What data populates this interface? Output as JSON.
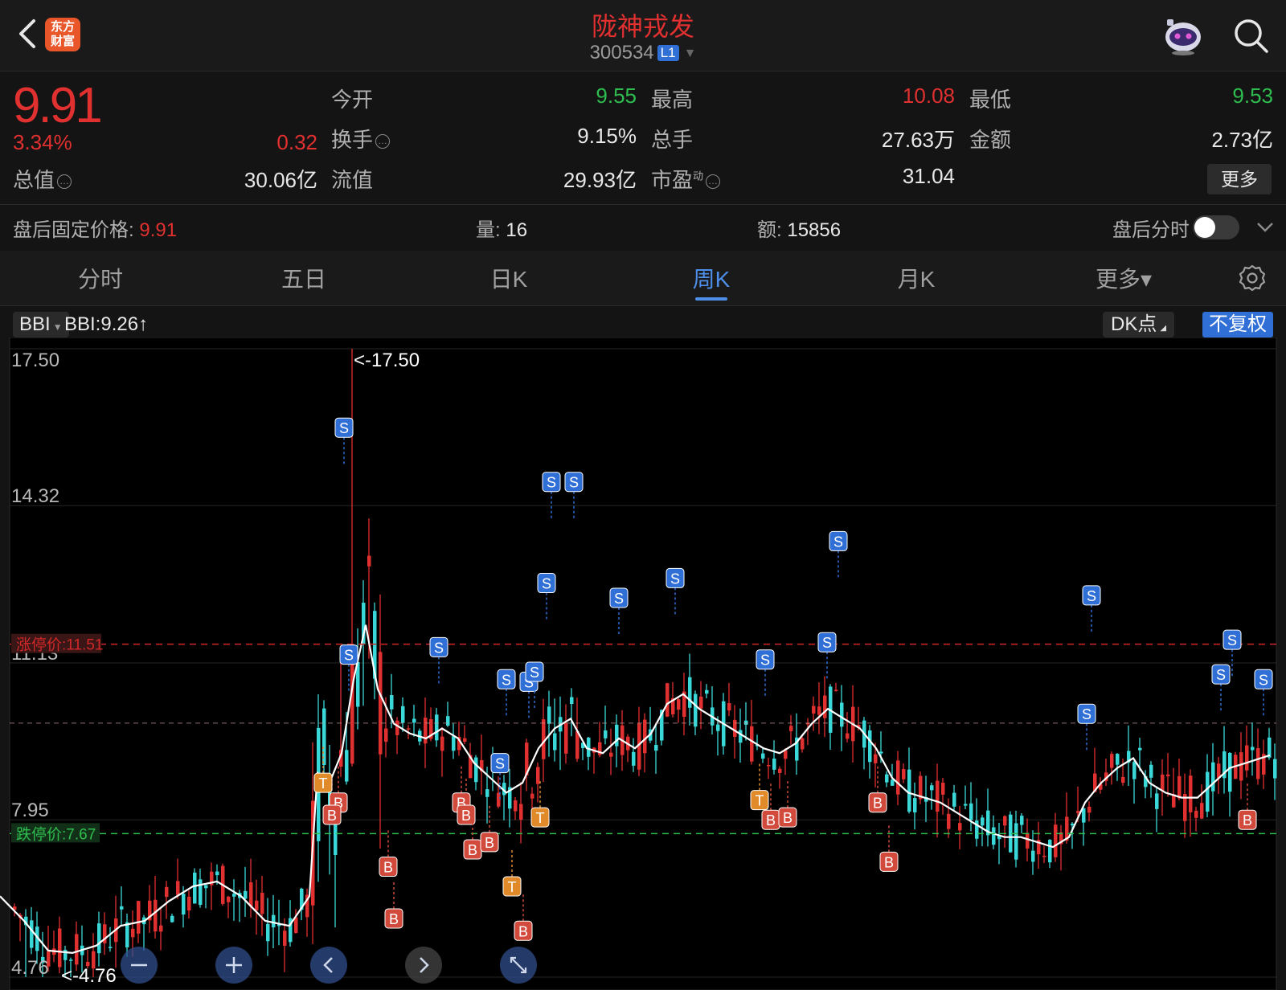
{
  "header": {
    "title": "陇神戎发",
    "code": "300534",
    "level_badge": "L1",
    "logo_line1": "东方",
    "logo_line2": "财富",
    "icons": [
      "back-arrow-icon",
      "robot-assistant-icon",
      "search-icon"
    ]
  },
  "quote": {
    "price": "9.91",
    "change_pct": "3.34%",
    "change": "0.32",
    "open_label": "今开",
    "open": "9.55",
    "high_label": "最高",
    "high": "10.08",
    "low_label": "最低",
    "low": "9.53",
    "turnover_label": "换手",
    "turnover": "9.15%",
    "volume_label": "总手",
    "volume": "27.63万",
    "amount_label": "金额",
    "amount": "2.73亿",
    "mktcap_label": "总值",
    "mktcap": "30.06亿",
    "float_label": "流值",
    "float_cap": "29.93亿",
    "pe_label": "市盈",
    "pe_sup": "动",
    "pe": "31.04",
    "more_label": "更多"
  },
  "after_hours": {
    "price_label": "盘后固定价格:",
    "price": "9.91",
    "vol_label": "量:",
    "vol": "16",
    "amt_label": "额:",
    "amt": "15856",
    "toggle_label": "盘后分时"
  },
  "tabs": [
    {
      "label": "分时"
    },
    {
      "label": "五日"
    },
    {
      "label": "日K"
    },
    {
      "label": "周K",
      "active": true
    },
    {
      "label": "月K"
    },
    {
      "label": "更多▾"
    }
  ],
  "chart_toolbar": {
    "indicator": "BBI",
    "indicator_value": "BBI:9.26↑",
    "dk_label": "DK点",
    "adjust_label": "不复权"
  },
  "chart_data": {
    "type": "candlestick",
    "y_ticks": [
      "17.50",
      "14.32",
      "11.13",
      "7.95",
      "4.76"
    ],
    "ylim": [
      4.76,
      17.5
    ],
    "limit_up_label": "涨停价:11.51",
    "limit_up": 11.51,
    "limit_down_label": "跌停价:7.67",
    "limit_down": 7.67,
    "ref_price": 9.91,
    "max_label": "<-17.50",
    "min_label": "<-4.76",
    "colors": {
      "up": "#e0302f",
      "down": "#3ad8d8",
      "bbi": "#ffffff",
      "limit_up": "#d02828",
      "limit_down": "#2ebd4e"
    },
    "bbi": [
      [
        0,
        6.4
      ],
      [
        30,
        5.9
      ],
      [
        60,
        5.3
      ],
      [
        90,
        5.25
      ],
      [
        120,
        5.4
      ],
      [
        150,
        5.8
      ],
      [
        180,
        5.9
      ],
      [
        210,
        6.3
      ],
      [
        240,
        6.6
      ],
      [
        270,
        6.7
      ],
      [
        300,
        6.4
      ],
      [
        330,
        5.9
      ],
      [
        360,
        5.8
      ],
      [
        385,
        6.4
      ],
      [
        395,
        8.9
      ],
      [
        410,
        8.7
      ],
      [
        425,
        9.3
      ],
      [
        440,
        10.8
      ],
      [
        455,
        11.9
      ],
      [
        470,
        10.6
      ],
      [
        490,
        9.9
      ],
      [
        510,
        9.7
      ],
      [
        530,
        9.6
      ],
      [
        550,
        9.8
      ],
      [
        570,
        9.6
      ],
      [
        590,
        9.1
      ],
      [
        610,
        8.8
      ],
      [
        630,
        8.5
      ],
      [
        650,
        8.7
      ],
      [
        670,
        9.4
      ],
      [
        690,
        9.8
      ],
      [
        710,
        10.0
      ],
      [
        730,
        9.4
      ],
      [
        750,
        9.3
      ],
      [
        770,
        9.6
      ],
      [
        790,
        9.4
      ],
      [
        810,
        9.7
      ],
      [
        830,
        10.3
      ],
      [
        850,
        10.5
      ],
      [
        870,
        10.2
      ],
      [
        890,
        10.0
      ],
      [
        910,
        9.8
      ],
      [
        930,
        9.6
      ],
      [
        950,
        9.4
      ],
      [
        970,
        9.3
      ],
      [
        990,
        9.5
      ],
      [
        1010,
        9.9
      ],
      [
        1030,
        10.2
      ],
      [
        1050,
        10.0
      ],
      [
        1070,
        9.8
      ],
      [
        1090,
        9.4
      ],
      [
        1110,
        8.8
      ],
      [
        1130,
        8.5
      ],
      [
        1150,
        8.4
      ],
      [
        1170,
        8.3
      ],
      [
        1190,
        8.1
      ],
      [
        1210,
        7.9
      ],
      [
        1230,
        7.7
      ],
      [
        1250,
        7.6
      ],
      [
        1270,
        7.6
      ],
      [
        1290,
        7.5
      ],
      [
        1310,
        7.4
      ],
      [
        1330,
        7.6
      ],
      [
        1350,
        8.3
      ],
      [
        1370,
        8.7
      ],
      [
        1390,
        9.0
      ],
      [
        1410,
        9.2
      ],
      [
        1430,
        8.7
      ],
      [
        1450,
        8.5
      ],
      [
        1470,
        8.4
      ],
      [
        1490,
        8.4
      ],
      [
        1510,
        8.7
      ],
      [
        1530,
        9.0
      ],
      [
        1550,
        9.1
      ],
      [
        1580,
        9.26
      ]
    ],
    "markers": [
      {
        "t": "S",
        "x": 428,
        "y": 15.9
      },
      {
        "t": "S",
        "x": 434,
        "y": 11.3
      },
      {
        "t": "S",
        "x": 546,
        "y": 11.45
      },
      {
        "t": "S",
        "x": 630,
        "y": 10.8
      },
      {
        "t": "S",
        "x": 622,
        "y": 9.1
      },
      {
        "t": "S",
        "x": 658,
        "y": 10.75
      },
      {
        "t": "S",
        "x": 665,
        "y": 10.95
      },
      {
        "t": "S",
        "x": 686,
        "y": 14.8
      },
      {
        "t": "S",
        "x": 714,
        "y": 14.8
      },
      {
        "t": "S",
        "x": 680,
        "y": 12.75
      },
      {
        "t": "S",
        "x": 770,
        "y": 12.45
      },
      {
        "t": "S",
        "x": 840,
        "y": 12.85
      },
      {
        "t": "S",
        "x": 952,
        "y": 11.2
      },
      {
        "t": "S",
        "x": 1029,
        "y": 11.55
      },
      {
        "t": "S",
        "x": 1043,
        "y": 13.6
      },
      {
        "t": "S",
        "x": 1358,
        "y": 12.5
      },
      {
        "t": "S",
        "x": 1352,
        "y": 10.1
      },
      {
        "t": "S",
        "x": 1533,
        "y": 11.6
      },
      {
        "t": "S",
        "x": 1519,
        "y": 10.9
      },
      {
        "t": "S",
        "x": 1572,
        "y": 10.8
      },
      {
        "t": "B",
        "x": 421,
        "y": 8.3
      },
      {
        "t": "B",
        "x": 413,
        "y": 8.05
      },
      {
        "t": "B",
        "x": 483,
        "y": 7.0
      },
      {
        "t": "B",
        "x": 490,
        "y": 5.95
      },
      {
        "t": "B",
        "x": 574,
        "y": 8.3
      },
      {
        "t": "B",
        "x": 580,
        "y": 8.05
      },
      {
        "t": "B",
        "x": 588,
        "y": 7.35
      },
      {
        "t": "B",
        "x": 609,
        "y": 7.5
      },
      {
        "t": "B",
        "x": 651,
        "y": 5.7
      },
      {
        "t": "B",
        "x": 959,
        "y": 7.95
      },
      {
        "t": "B",
        "x": 980,
        "y": 8.0
      },
      {
        "t": "B",
        "x": 1092,
        "y": 8.3
      },
      {
        "t": "B",
        "x": 1106,
        "y": 7.1
      },
      {
        "t": "B",
        "x": 1552,
        "y": 7.95
      },
      {
        "t": "T",
        "x": 402,
        "y": 8.7
      },
      {
        "t": "T",
        "x": 637,
        "y": 6.6
      },
      {
        "t": "T",
        "x": 672,
        "y": 8.0
      },
      {
        "t": "T",
        "x": 945,
        "y": 8.35
      }
    ]
  },
  "chart_controls": [
    "zoom-out-icon",
    "zoom-in-icon",
    "pan-left-icon",
    "pan-right-icon",
    "fullscreen-icon"
  ]
}
